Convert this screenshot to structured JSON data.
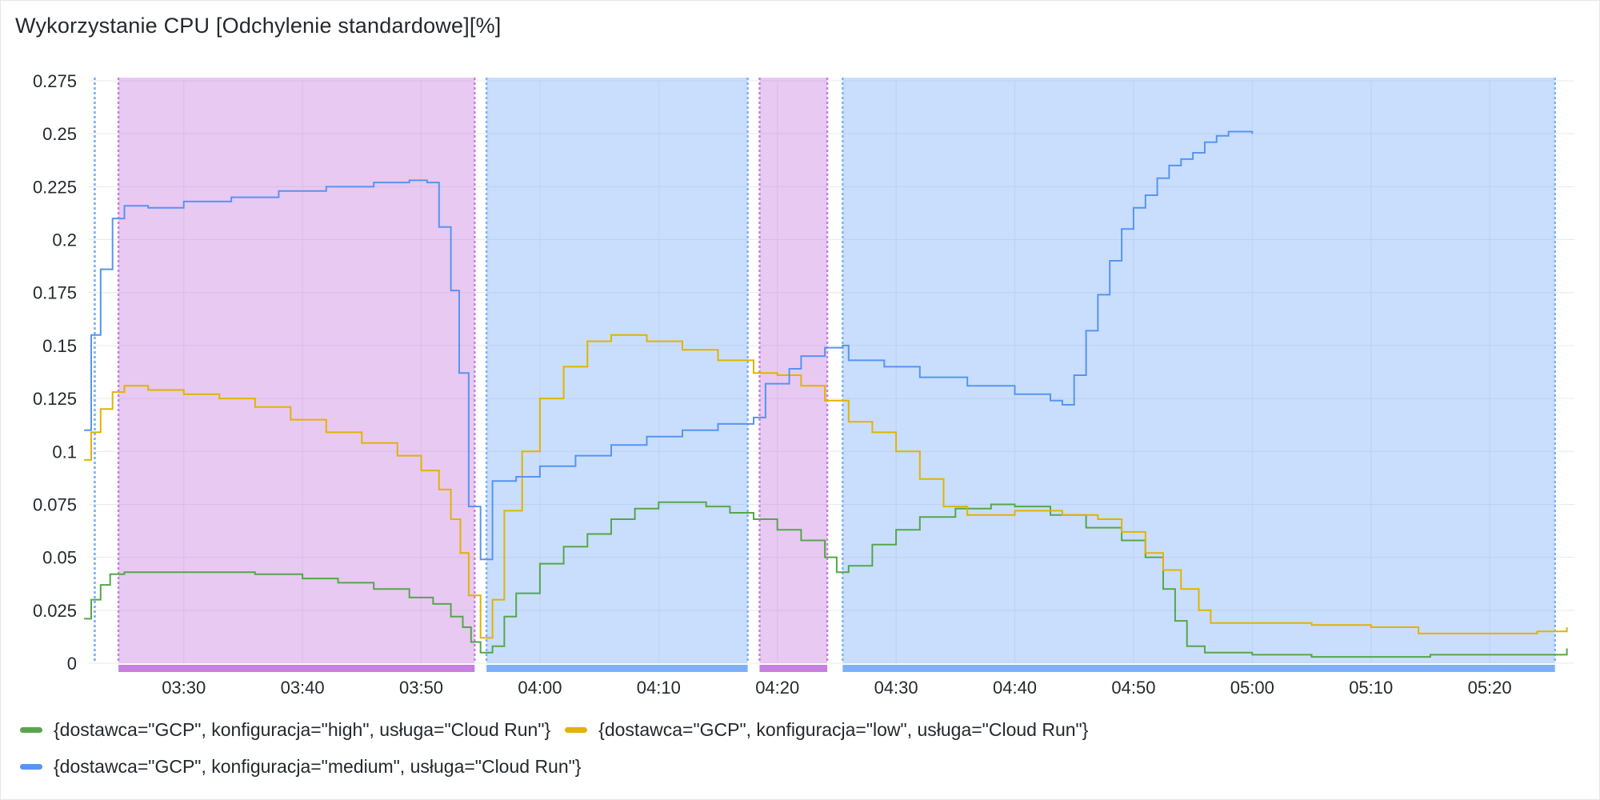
{
  "panel": {
    "title": "Wykorzystanie CPU [Odchylenie standardowe][%]"
  },
  "colors": {
    "high": "#56a64b",
    "low": "#e0b400",
    "medium": "#5794f2",
    "region_purple": "#c77fe0",
    "region_blue": "#7eb0fa",
    "grid": "#e9e9ec"
  },
  "chart_data": {
    "type": "line",
    "title": "Wykorzystanie CPU [Odchylenie standardowe][%]",
    "xlabel": "",
    "ylabel": "",
    "x_range": [
      "03:22",
      "05:27"
    ],
    "ylim": [
      0,
      0.275
    ],
    "y_ticks": [
      "0",
      "0.025",
      "0.05",
      "0.075",
      "0.1",
      "0.125",
      "0.15",
      "0.175",
      "0.2",
      "0.225",
      "0.25",
      "0.275"
    ],
    "x_ticks": [
      "03:30",
      "03:40",
      "03:50",
      "04:00",
      "04:10",
      "04:20",
      "04:30",
      "04:40",
      "04:50",
      "05:00",
      "05:10",
      "05:20"
    ],
    "grid": true,
    "legend_position": "bottom",
    "regions": [
      {
        "start": "03:22.5",
        "end": "03:22.5",
        "color": "blue"
      },
      {
        "start": "03:24.5",
        "end": "03:54.5",
        "color": "purple"
      },
      {
        "start": "03:55.5",
        "end": "04:17.5",
        "color": "blue"
      },
      {
        "start": "04:18.5",
        "end": "04:24.2",
        "color": "purple"
      },
      {
        "start": "04:25.5",
        "end": "05:25.5",
        "color": "blue"
      }
    ],
    "series": [
      {
        "name": "{dostawca=\"GCP\", konfiguracja=\"high\", usługa=\"Cloud Run\"}",
        "color_key": "high",
        "points": [
          [
            "03:21.6",
            0.021
          ],
          [
            "03:22.2",
            0.03
          ],
          [
            "03:23",
            0.037
          ],
          [
            "03:23.8",
            0.042
          ],
          [
            "03:25",
            0.043
          ],
          [
            "03:28",
            0.043
          ],
          [
            "03:32",
            0.043
          ],
          [
            "03:36",
            0.042
          ],
          [
            "03:40",
            0.04
          ],
          [
            "03:43",
            0.038
          ],
          [
            "03:46",
            0.035
          ],
          [
            "03:49",
            0.031
          ],
          [
            "03:51",
            0.028
          ],
          [
            "03:52.5",
            0.022
          ],
          [
            "03:53.5",
            0.017
          ],
          [
            "03:54.2",
            0.01
          ],
          [
            "03:55",
            0.005
          ],
          [
            "03:56",
            0.008
          ],
          [
            "03:57",
            0.022
          ],
          [
            "03:58",
            0.033
          ],
          [
            "04:00",
            0.047
          ],
          [
            "04:02",
            0.055
          ],
          [
            "04:04",
            0.061
          ],
          [
            "04:06",
            0.068
          ],
          [
            "04:08",
            0.073
          ],
          [
            "04:10",
            0.076
          ],
          [
            "04:12",
            0.076
          ],
          [
            "04:14",
            0.074
          ],
          [
            "04:16",
            0.071
          ],
          [
            "04:18",
            0.068
          ],
          [
            "04:20",
            0.063
          ],
          [
            "04:22",
            0.058
          ],
          [
            "04:24",
            0.05
          ],
          [
            "04:25",
            0.043
          ],
          [
            "04:26",
            0.046
          ],
          [
            "04:28",
            0.056
          ],
          [
            "04:30",
            0.063
          ],
          [
            "04:32",
            0.069
          ],
          [
            "04:35",
            0.073
          ],
          [
            "04:38",
            0.075
          ],
          [
            "04:40",
            0.074
          ],
          [
            "04:43",
            0.07
          ],
          [
            "04:46",
            0.064
          ],
          [
            "04:49",
            0.058
          ],
          [
            "04:51",
            0.05
          ],
          [
            "04:52.5",
            0.035
          ],
          [
            "04:53.5",
            0.02
          ],
          [
            "04:54.5",
            0.008
          ],
          [
            "04:56",
            0.005
          ],
          [
            "05:00",
            0.004
          ],
          [
            "05:05",
            0.003
          ],
          [
            "05:10",
            0.003
          ],
          [
            "05:15",
            0.004
          ],
          [
            "05:20",
            0.004
          ],
          [
            "05:25",
            0.004
          ],
          [
            "05:26.5",
            0.007
          ]
        ]
      },
      {
        "name": "{dostawca=\"GCP\", konfiguracja=\"low\", usługa=\"Cloud Run\"}",
        "color_key": "low",
        "points": [
          [
            "03:21.6",
            0.096
          ],
          [
            "03:22.2",
            0.109
          ],
          [
            "03:23",
            0.12
          ],
          [
            "03:24",
            0.128
          ],
          [
            "03:25",
            0.131
          ],
          [
            "03:27",
            0.129
          ],
          [
            "03:30",
            0.127
          ],
          [
            "03:33",
            0.125
          ],
          [
            "03:36",
            0.121
          ],
          [
            "03:39",
            0.115
          ],
          [
            "03:42",
            0.109
          ],
          [
            "03:45",
            0.104
          ],
          [
            "03:48",
            0.098
          ],
          [
            "03:50",
            0.091
          ],
          [
            "03:51.5",
            0.082
          ],
          [
            "03:52.5",
            0.068
          ],
          [
            "03:53.3",
            0.052
          ],
          [
            "03:54",
            0.032
          ],
          [
            "03:55",
            0.012
          ],
          [
            "03:56",
            0.03
          ],
          [
            "03:57",
            0.072
          ],
          [
            "03:58.5",
            0.1
          ],
          [
            "04:00",
            0.125
          ],
          [
            "04:02",
            0.14
          ],
          [
            "04:04",
            0.152
          ],
          [
            "04:06",
            0.155
          ],
          [
            "04:09",
            0.152
          ],
          [
            "04:12",
            0.148
          ],
          [
            "04:15",
            0.143
          ],
          [
            "04:18",
            0.137
          ],
          [
            "04:20",
            0.136
          ],
          [
            "04:22",
            0.131
          ],
          [
            "04:24",
            0.124
          ],
          [
            "04:26",
            0.114
          ],
          [
            "04:28",
            0.109
          ],
          [
            "04:30",
            0.1
          ],
          [
            "04:32",
            0.087
          ],
          [
            "04:34",
            0.074
          ],
          [
            "04:36",
            0.07
          ],
          [
            "04:40",
            0.072
          ],
          [
            "04:44",
            0.07
          ],
          [
            "04:47",
            0.068
          ],
          [
            "04:49",
            0.062
          ],
          [
            "04:51",
            0.052
          ],
          [
            "04:52.5",
            0.044
          ],
          [
            "04:54",
            0.035
          ],
          [
            "04:55.5",
            0.025
          ],
          [
            "04:56.5",
            0.019
          ],
          [
            "05:00",
            0.019
          ],
          [
            "05:05",
            0.018
          ],
          [
            "05:10",
            0.017
          ],
          [
            "05:14",
            0.014
          ],
          [
            "05:20",
            0.014
          ],
          [
            "05:24",
            0.015
          ],
          [
            "05:26.5",
            0.017
          ]
        ]
      },
      {
        "name": "{dostawca=\"GCP\", konfiguracja=\"medium\", usługa=\"Cloud Run\"}",
        "color_key": "medium",
        "points": [
          [
            "03:21.6",
            0.11
          ],
          [
            "03:22.2",
            0.155
          ],
          [
            "03:23",
            0.186
          ],
          [
            "03:24",
            0.21
          ],
          [
            "03:25",
            0.216
          ],
          [
            "03:27",
            0.215
          ],
          [
            "03:30",
            0.218
          ],
          [
            "03:34",
            0.22
          ],
          [
            "03:38",
            0.223
          ],
          [
            "03:42",
            0.225
          ],
          [
            "03:46",
            0.227
          ],
          [
            "03:49",
            0.228
          ],
          [
            "03:50.5",
            0.227
          ],
          [
            "03:51.5",
            0.206
          ],
          [
            "03:52.5",
            0.176
          ],
          [
            "03:53.2",
            0.137
          ],
          [
            "03:54",
            0.074
          ],
          [
            "03:55",
            0.049
          ],
          [
            "03:56",
            0.086
          ],
          [
            "03:58",
            0.088
          ],
          [
            "04:00",
            0.093
          ],
          [
            "04:03",
            0.098
          ],
          [
            "04:06",
            0.103
          ],
          [
            "04:09",
            0.107
          ],
          [
            "04:12",
            0.11
          ],
          [
            "04:15",
            0.113
          ],
          [
            "04:18",
            0.116
          ],
          [
            "04:19",
            0.132
          ],
          [
            "04:21",
            0.139
          ],
          [
            "04:22",
            0.145
          ],
          [
            "04:24",
            0.149
          ],
          [
            "04:25.5",
            0.15
          ],
          [
            "04:26",
            0.143
          ],
          [
            "04:29",
            0.14
          ],
          [
            "04:32",
            0.135
          ],
          [
            "04:36",
            0.131
          ],
          [
            "04:40",
            0.127
          ],
          [
            "04:43",
            0.124
          ],
          [
            "04:44",
            0.122
          ],
          [
            "04:45",
            0.136
          ],
          [
            "04:46",
            0.157
          ],
          [
            "04:47",
            0.174
          ],
          [
            "04:48",
            0.19
          ],
          [
            "04:49",
            0.205
          ],
          [
            "04:50",
            0.215
          ],
          [
            "04:51",
            0.221
          ],
          [
            "04:52",
            0.229
          ],
          [
            "04:53",
            0.235
          ],
          [
            "04:54",
            0.238
          ],
          [
            "04:55",
            0.241
          ],
          [
            "04:56",
            0.246
          ],
          [
            "04:57",
            0.249
          ],
          [
            "04:58",
            0.251
          ],
          [
            "05:00",
            0.25
          ]
        ]
      }
    ]
  }
}
